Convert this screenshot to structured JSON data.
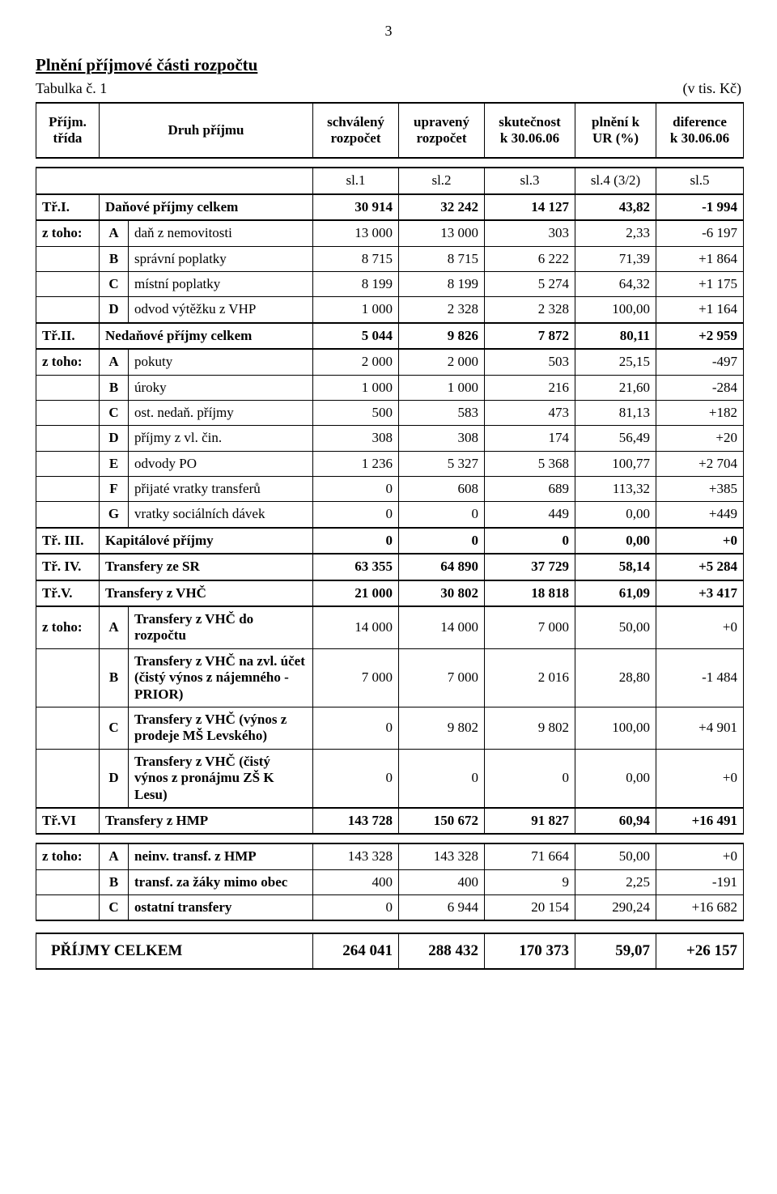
{
  "page_number": "3",
  "title": "Plnění příjmové části rozpočtu",
  "subtitle_left": "Tabulka č. 1",
  "subtitle_right": "(v tis. Kč)",
  "head": {
    "col_prijm": "Příjm.\ntřída",
    "col_druh": "Druh příjmu",
    "col_schval": "schválený\nrozpočet",
    "col_uprav": "upravený\nrozpočet",
    "col_skut": "skutečnost\nk 30.06.06",
    "col_plneni": "plnění k\nUR (%)",
    "col_dif": "diference\nk 30.06.06"
  },
  "sl": {
    "c3": "sl.1",
    "c4": "sl.2",
    "c5": "sl.3",
    "c6": "sl.4 (3/2)",
    "c7": "sl.5"
  },
  "ztoho": "z toho:",
  "sections": {
    "I": {
      "cls": "Tř.I.",
      "label": "Daňové příjmy celkem",
      "v": [
        "30 914",
        "32 242",
        "14 127",
        "43,82",
        "-1 994"
      ],
      "rows": [
        {
          "k": "A",
          "l": "daň z nemovitosti",
          "v": [
            "13 000",
            "13 000",
            "303",
            "2,33",
            "-6 197"
          ]
        },
        {
          "k": "B",
          "l": "správní poplatky",
          "v": [
            "8 715",
            "8 715",
            "6 222",
            "71,39",
            "+1 864"
          ]
        },
        {
          "k": "C",
          "l": "místní poplatky",
          "v": [
            "8 199",
            "8 199",
            "5 274",
            "64,32",
            "+1 175"
          ]
        },
        {
          "k": "D",
          "l": "odvod výtěžku z VHP",
          "v": [
            "1 000",
            "2 328",
            "2 328",
            "100,00",
            "+1 164"
          ]
        }
      ]
    },
    "II": {
      "cls": "Tř.II.",
      "label": "Nedaňové příjmy celkem",
      "v": [
        "5 044",
        "9 826",
        "7 872",
        "80,11",
        "+2 959"
      ],
      "rows": [
        {
          "k": "A",
          "l": "pokuty",
          "v": [
            "2 000",
            "2 000",
            "503",
            "25,15",
            "-497"
          ]
        },
        {
          "k": "B",
          "l": "úroky",
          "v": [
            "1 000",
            "1 000",
            "216",
            "21,60",
            "-284"
          ]
        },
        {
          "k": "C",
          "l": "ost. nedaň. příjmy",
          "v": [
            "500",
            "583",
            "473",
            "81,13",
            "+182"
          ]
        },
        {
          "k": "D",
          "l": "příjmy z vl. čin.",
          "v": [
            "308",
            "308",
            "174",
            "56,49",
            "+20"
          ]
        },
        {
          "k": "E",
          "l": "odvody PO",
          "v": [
            "1 236",
            "5 327",
            "5 368",
            "100,77",
            "+2 704"
          ]
        },
        {
          "k": "F",
          "l": "přijaté vratky transferů",
          "v": [
            "0",
            "608",
            "689",
            "113,32",
            "+385"
          ]
        },
        {
          "k": "G",
          "l": "vratky sociálních dávek",
          "v": [
            "0",
            "0",
            "449",
            "0,00",
            "+449"
          ]
        }
      ]
    },
    "III": {
      "cls": "Tř. III.",
      "label": "Kapitálové příjmy",
      "v": [
        "0",
        "0",
        "0",
        "0,00",
        "+0"
      ]
    },
    "IV": {
      "cls": "Tř. IV.",
      "label": "Transfery ze SR",
      "v": [
        "63 355",
        "64 890",
        "37 729",
        "58,14",
        "+5 284"
      ]
    },
    "V": {
      "cls": "Tř.V.",
      "label": "Transfery z VHČ",
      "v": [
        "21 000",
        "30 802",
        "18 818",
        "61,09",
        "+3 417"
      ],
      "rows": [
        {
          "k": "A",
          "l": "Transfery z VHČ do rozpočtu",
          "v": [
            "14 000",
            "14 000",
            "7 000",
            "50,00",
            "+0"
          ]
        },
        {
          "k": "B",
          "l": "Transfery z VHČ na zvl. účet (čistý výnos z nájemného - PRIOR)",
          "v": [
            "7 000",
            "7 000",
            "2 016",
            "28,80",
            "-1 484"
          ]
        },
        {
          "k": "C",
          "l": "Transfery z VHČ (výnos z prodeje MŠ Levského)",
          "v": [
            "0",
            "9 802",
            "9 802",
            "100,00",
            "+4 901"
          ]
        },
        {
          "k": "D",
          "l": "Transfery z VHČ (čistý výnos z pronájmu ZŠ K Lesu)",
          "v": [
            "0",
            "0",
            "0",
            "0,00",
            "+0"
          ]
        }
      ]
    },
    "VI": {
      "cls": "Tř.VI",
      "label": "Transfery z HMP",
      "v": [
        "143 728",
        "150 672",
        "91 827",
        "60,94",
        "+16 491"
      ],
      "rows": [
        {
          "k": "A",
          "l": "neinv. transf. z HMP",
          "v": [
            "143 328",
            "143 328",
            "71 664",
            "50,00",
            "+0"
          ]
        },
        {
          "k": "B",
          "l": "transf. za žáky mimo obec",
          "v": [
            "400",
            "400",
            "9",
            "2,25",
            "-191"
          ]
        },
        {
          "k": "C",
          "l": "ostatní transfery",
          "v": [
            "0",
            "6 944",
            "20 154",
            "290,24",
            "+16 682"
          ]
        }
      ]
    }
  },
  "total": {
    "label": "PŘÍJMY CELKEM",
    "v": [
      "264 041",
      "288 432",
      "170 373",
      "59,07",
      "+26 157"
    ]
  }
}
